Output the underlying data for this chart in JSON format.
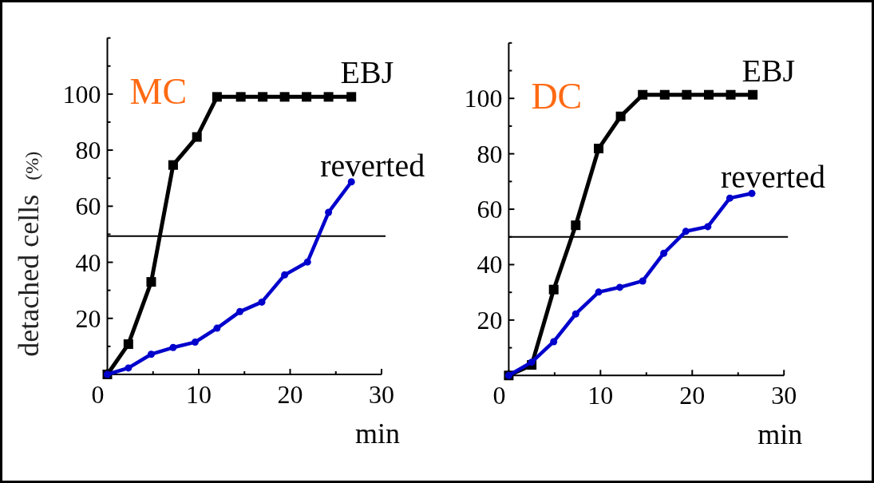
{
  "chart_data": [
    {
      "type": "line",
      "ylabel": "detached cells (%)",
      "xlabel": "min",
      "annotations": [
        "MC"
      ],
      "xlim": [
        0,
        30
      ],
      "ylim": [
        0,
        120
      ],
      "xticks": [
        0,
        {
          "value": 5,
          "label": null
        },
        10,
        {
          "value": 15,
          "label": null
        },
        20,
        {
          "value": 25,
          "label": null
        },
        30
      ],
      "yticks": [
        {
          "value": 10,
          "label": null
        },
        20,
        {
          "value": 30,
          "label": null
        },
        40,
        {
          "value": 50,
          "label": null
        },
        60,
        {
          "value": 70,
          "label": null
        },
        80,
        {
          "value": 90,
          "label": null
        },
        100,
        {
          "value": 110,
          "label": null
        },
        {
          "value": 120,
          "label": null
        }
      ],
      "grid": false,
      "line_style": "solid",
      "ref_lines": [
        {
          "axis": "y",
          "value": 49.3,
          "color": "#000000"
        }
      ],
      "series": [
        {
          "name": "EBJ",
          "color": "#000000",
          "marker": "square",
          "x": [
            0,
            2.3,
            4.8,
            7.2,
            9.8,
            12,
            14.6,
            17,
            19.4,
            21.8,
            24.2,
            26.7
          ],
          "values": [
            0,
            10.8,
            33,
            74.7,
            84.7,
            99,
            99,
            99,
            99,
            99,
            99,
            99
          ]
        },
        {
          "name": "reverted",
          "color": "#0000cc",
          "marker": "circle",
          "x": [
            0,
            2.3,
            4.8,
            7.2,
            9.6,
            12,
            14.5,
            16.9,
            19.4,
            21.9,
            24.2,
            26.7
          ],
          "values": [
            0,
            2.3,
            7.2,
            9.6,
            11.5,
            16.5,
            22.4,
            25.8,
            35.5,
            40.1,
            57.8,
            68.7
          ]
        }
      ]
    },
    {
      "type": "line",
      "xlabel": "min",
      "annotations": [
        "DC"
      ],
      "xlim": [
        0,
        30
      ],
      "ylim": [
        0,
        120
      ],
      "xticks": [
        0,
        {
          "value": 5,
          "label": null
        },
        10,
        {
          "value": 15,
          "label": null
        },
        20,
        {
          "value": 25,
          "label": null
        },
        30
      ],
      "yticks": [
        {
          "value": 10,
          "label": null
        },
        20,
        {
          "value": 30,
          "label": null
        },
        40,
        {
          "value": 50,
          "label": null
        },
        60,
        {
          "value": 70,
          "label": null
        },
        80,
        {
          "value": 90,
          "label": null
        },
        100,
        {
          "value": 110,
          "label": null
        },
        {
          "value": 120,
          "label": null
        }
      ],
      "grid": false,
      "line_style": "solid",
      "ref_lines": [
        {
          "axis": "y",
          "value": 50,
          "color": "#000000"
        }
      ],
      "series": [
        {
          "name": "EBJ",
          "color": "#000000",
          "marker": "square",
          "x": [
            0,
            2.5,
            4.9,
            7.3,
            9.8,
            12.2,
            14.6,
            17,
            19.4,
            21.8,
            24.2,
            26.6
          ],
          "values": [
            0,
            3.8,
            31,
            54.2,
            81.9,
            93.5,
            101.3,
            101.3,
            101.3,
            101.3,
            101.3,
            101.3
          ]
        },
        {
          "name": "reverted",
          "color": "#0000cc",
          "marker": "circle",
          "x": [
            0,
            2.5,
            4.9,
            7.3,
            9.8,
            12.1,
            14.6,
            16.9,
            19.3,
            21.7,
            24.1,
            26.5
          ],
          "values": [
            0,
            4.8,
            12.2,
            22.2,
            30.1,
            31.8,
            34.1,
            44.1,
            52,
            53.7,
            64,
            65.7
          ]
        }
      ]
    }
  ]
}
